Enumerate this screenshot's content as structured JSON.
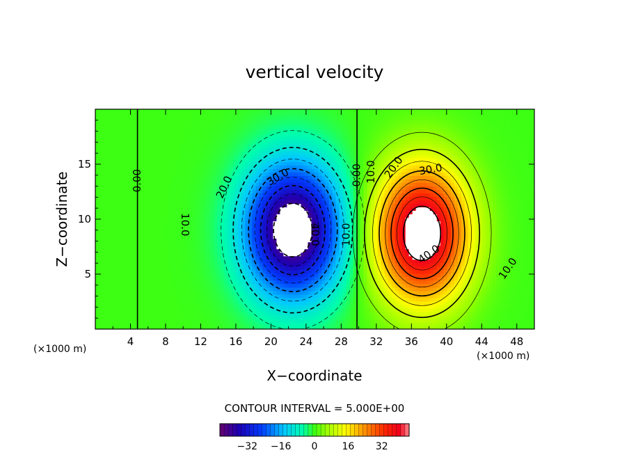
{
  "chart_data": {
    "type": "heatmap",
    "title": "vertical velocity",
    "xlabel": "X−coordinate",
    "ylabel": "Z−coordinate",
    "x_unit_left": "(×1000 m)",
    "x_unit_right": "(×1000 m)",
    "xlim": [
      0,
      50
    ],
    "ylim": [
      0,
      20
    ],
    "x_ticks": [
      4,
      8,
      12,
      16,
      20,
      24,
      28,
      32,
      36,
      40,
      44,
      48
    ],
    "y_ticks": [
      5,
      10,
      15
    ],
    "contour_interval_label": "CONTOUR INTERVAL =  5.000E+00",
    "colorbar": {
      "min": -45,
      "max": 45,
      "ticks": [
        -32,
        -16,
        0,
        16,
        32
      ]
    },
    "contour_labels": [
      {
        "text": "0.00",
        "x": 4.8,
        "y": 13.5,
        "rotate": -90
      },
      {
        "text": "0.00",
        "x": 29.8,
        "y": 14.0,
        "rotate": -90
      },
      {
        "text": "10.0",
        "x": 10.2,
        "y": 9.5,
        "rotate": 90
      },
      {
        "text": "20.0",
        "x": 14.7,
        "y": 12.9,
        "rotate": -65
      },
      {
        "text": "30.0",
        "x": 20.8,
        "y": 13.8,
        "rotate": -30
      },
      {
        "text": "40.0",
        "x": 25.0,
        "y": 8.6,
        "rotate": 90
      },
      {
        "text": "10.0",
        "x": 28.6,
        "y": 8.6,
        "rotate": -90
      },
      {
        "text": "10.0",
        "x": 31.4,
        "y": 14.3,
        "rotate": -90
      },
      {
        "text": "20.0",
        "x": 34.0,
        "y": 14.7,
        "rotate": -55
      },
      {
        "text": "30.0",
        "x": 38.2,
        "y": 14.5,
        "rotate": -10
      },
      {
        "text": "40.0",
        "x": 38.0,
        "y": 6.8,
        "rotate": -35
      },
      {
        "text": "10.0",
        "x": 47.0,
        "y": 5.5,
        "rotate": -55
      }
    ],
    "cells": [
      {
        "name": "downdraft",
        "cx": 22.5,
        "cz": 9.0,
        "sx": 5.6,
        "sz": 6.2,
        "peak": -47
      },
      {
        "name": "updraft",
        "cx": 37.2,
        "cz": 8.7,
        "sx": 5.4,
        "sz": 6.3,
        "peak": 47
      }
    ]
  }
}
